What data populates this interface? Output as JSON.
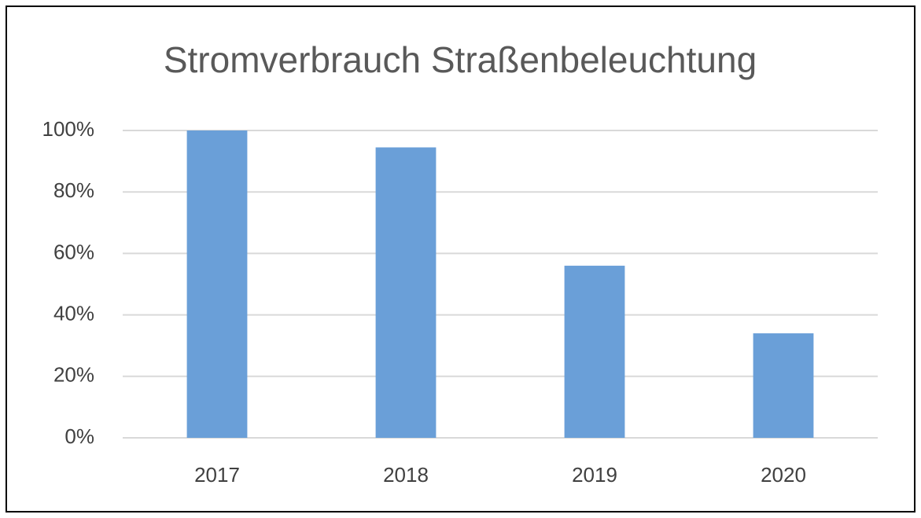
{
  "chart_data": {
    "type": "bar",
    "title": "Stromverbrauch Straßenbeleuchtung",
    "categories": [
      "2017",
      "2018",
      "2019",
      "2020"
    ],
    "values": [
      100,
      94.5,
      56,
      34
    ],
    "color": "#6a9fd8",
    "ylim": [
      0,
      100
    ],
    "yticks": [
      {
        "value": 0,
        "label": "0%"
      },
      {
        "value": 20,
        "label": "20%"
      },
      {
        "value": 40,
        "label": "40%"
      },
      {
        "value": 60,
        "label": "60%"
      },
      {
        "value": 80,
        "label": "80%"
      },
      {
        "value": 100,
        "label": "100%"
      }
    ],
    "grid": true
  }
}
